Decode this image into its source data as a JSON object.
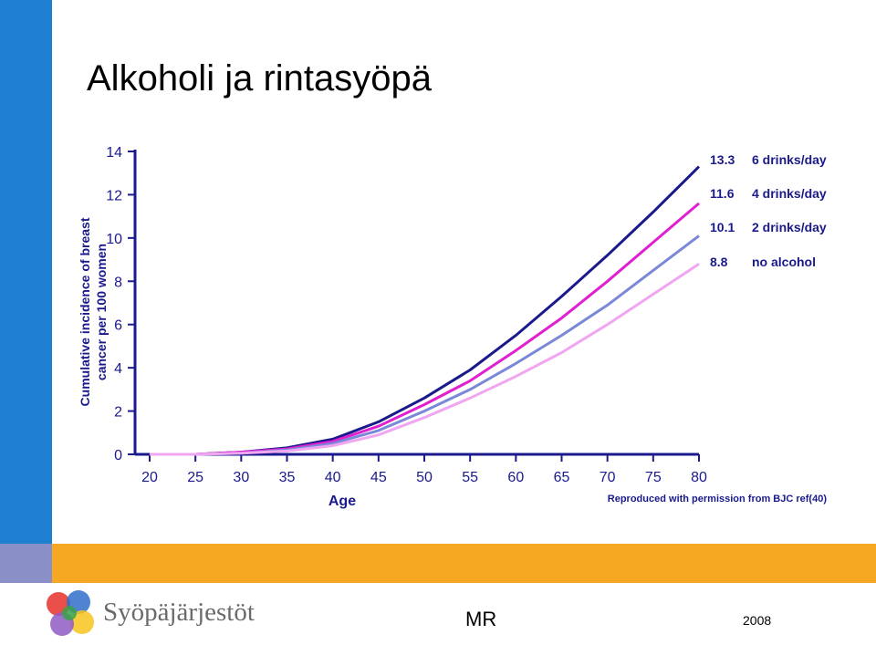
{
  "slide": {
    "title": "Alkoholi ja rintasyöpä",
    "organization": "Syöpäjärjestöt",
    "author": "MR",
    "year": "2008"
  },
  "colors": {
    "sidebar": "#1f7fd0",
    "band": "#f7a823",
    "axis": "#1a1a8c",
    "text": "#1a1a8c"
  },
  "chart_data": {
    "type": "line",
    "xlabel": "Age",
    "ylabel_lines": [
      "Cumulative incidence of breast",
      "cancer per 100 women"
    ],
    "xlim": [
      20,
      80
    ],
    "ylim": [
      0,
      14
    ],
    "xticks": [
      20,
      25,
      30,
      35,
      40,
      45,
      50,
      55,
      60,
      65,
      70,
      75,
      80
    ],
    "yticks": [
      0,
      2,
      4,
      6,
      8,
      10,
      12,
      14
    ],
    "grid": false,
    "legend_position": "right",
    "footnote": "Reproduced with permission from BJC ref(40)",
    "series": [
      {
        "name": "6 drinks/day",
        "end_label": "13.3",
        "color": "#1a1a8c",
        "x": [
          20,
          25,
          30,
          35,
          40,
          45,
          50,
          55,
          60,
          65,
          70,
          75,
          80
        ],
        "y": [
          0,
          0,
          0.1,
          0.3,
          0.7,
          1.5,
          2.6,
          3.9,
          5.5,
          7.3,
          9.2,
          11.2,
          13.3
        ]
      },
      {
        "name": "4 drinks/day",
        "end_label": "11.6",
        "color": "#e020d0",
        "x": [
          20,
          25,
          30,
          35,
          40,
          45,
          50,
          55,
          60,
          65,
          70,
          75,
          80
        ],
        "y": [
          0,
          0,
          0.1,
          0.25,
          0.6,
          1.3,
          2.3,
          3.4,
          4.8,
          6.3,
          8.0,
          9.8,
          11.6
        ]
      },
      {
        "name": "2 drinks/day",
        "end_label": "10.1",
        "color": "#7a88d8",
        "x": [
          20,
          25,
          30,
          35,
          40,
          45,
          50,
          55,
          60,
          65,
          70,
          75,
          80
        ],
        "y": [
          0,
          0,
          0.05,
          0.2,
          0.5,
          1.1,
          2.0,
          3.0,
          4.2,
          5.5,
          6.9,
          8.5,
          10.1
        ]
      },
      {
        "name": "no alcohol",
        "end_label": "8.8",
        "color": "#f0a6f0",
        "x": [
          20,
          25,
          30,
          35,
          40,
          45,
          50,
          55,
          60,
          65,
          70,
          75,
          80
        ],
        "y": [
          0,
          0,
          0.05,
          0.15,
          0.4,
          0.9,
          1.7,
          2.6,
          3.6,
          4.7,
          6.0,
          7.4,
          8.8
        ]
      }
    ]
  }
}
